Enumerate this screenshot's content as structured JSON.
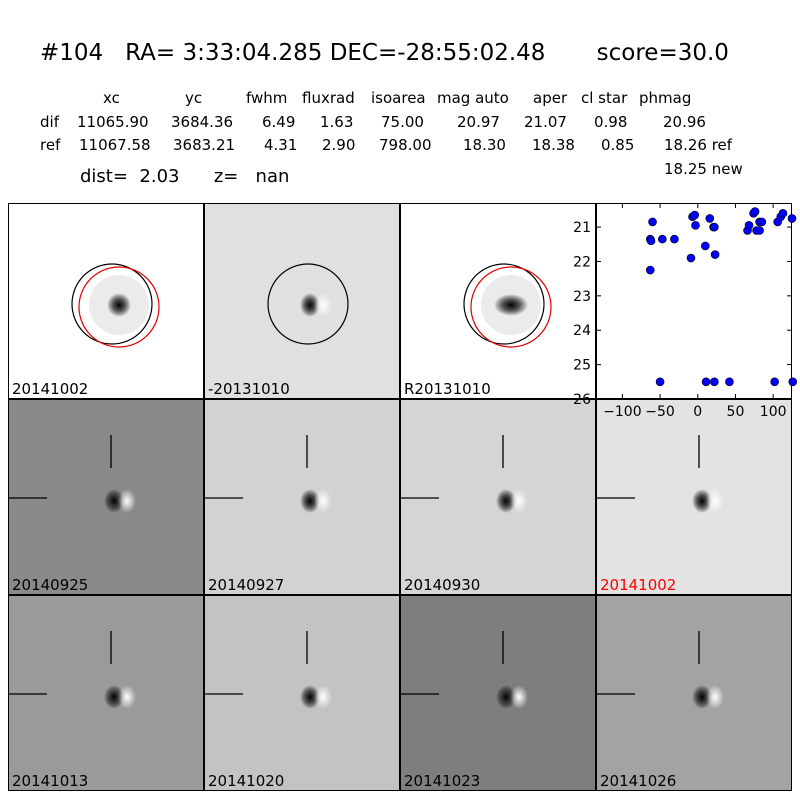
{
  "header": {
    "id": "#104",
    "ra_label": "RA=",
    "ra": "3:33:04.285",
    "dec_label": "DEC=",
    "dec": "-28:55:02.48",
    "score_label": "score=",
    "score": "30.0"
  },
  "table": {
    "columns": [
      "xc",
      "yc",
      "fwhm",
      "fluxrad",
      "isoarea",
      "mag auto",
      "aper",
      "cl star",
      "phmag"
    ],
    "rows": [
      {
        "label": "dif",
        "values": [
          "11065.90",
          "3684.36",
          "6.49",
          "1.63",
          "75.00",
          "20.97",
          "21.07",
          "0.98",
          "20.96"
        ]
      },
      {
        "label": "ref",
        "values": [
          "11067.58",
          "3683.21",
          "4.31",
          "2.90",
          "798.00",
          "18.30",
          "18.38",
          "0.85",
          "18.26 ref"
        ]
      }
    ],
    "extra": "18.25 new"
  },
  "summary": {
    "dist_label": "dist=",
    "dist": "2.03",
    "z_label": "z=",
    "z": "nan"
  },
  "panels": [
    {
      "label": "20141002",
      "bg": "#ffffff",
      "circles": "both",
      "type": "star",
      "label_color": "#000000"
    },
    {
      "label": "-20131010",
      "bg": "#e0e0e0",
      "circles": "black",
      "type": "dipole",
      "label_color": "#000000"
    },
    {
      "label": "R20131010",
      "bg": "#ffffff",
      "circles": "both",
      "type": "star-wide",
      "label_color": "#000000"
    },
    {
      "label": "20140925",
      "bg": "#8a8a8a",
      "circles": "none",
      "type": "dipole",
      "label_color": "#000000"
    },
    {
      "label": "20140927",
      "bg": "#d2d2d2",
      "circles": "none",
      "type": "dipole",
      "label_color": "#000000"
    },
    {
      "label": "20140930",
      "bg": "#d5d5d5",
      "circles": "none",
      "type": "dipole",
      "label_color": "#000000"
    },
    {
      "label": "20141002",
      "bg": "#e3e3e3",
      "circles": "none",
      "type": "dipole",
      "label_color": "#ff0000"
    },
    {
      "label": "20141013",
      "bg": "#9a9a9a",
      "circles": "none",
      "type": "dipole",
      "label_color": "#000000"
    },
    {
      "label": "20141020",
      "bg": "#c3c3c3",
      "circles": "none",
      "type": "dipole",
      "label_color": "#000000"
    },
    {
      "label": "20141023",
      "bg": "#7e7e7e",
      "circles": "none",
      "type": "dipole",
      "label_color": "#000000"
    },
    {
      "label": "20141026",
      "bg": "#a3a3a3",
      "circles": "none",
      "type": "dipole",
      "label_color": "#000000"
    }
  ],
  "chart_data": {
    "type": "scatter",
    "title": "",
    "xlabel": "",
    "ylabel": "",
    "xlim": [
      -135,
      125
    ],
    "ylim": [
      26,
      20.3
    ],
    "y_inverted": true,
    "xticks": [
      -100,
      -50,
      0,
      50,
      100
    ],
    "xtick_labels": [
      "−100",
      "−50",
      "0",
      "50",
      "100"
    ],
    "yticks": [
      21,
      22,
      23,
      24,
      25,
      26
    ],
    "ytick_labels": [
      "21",
      "22",
      "23",
      "24",
      "25",
      "26"
    ],
    "marker_color": "#0000ff",
    "series": [
      {
        "x": [
          -63,
          -63,
          -60,
          -62,
          -47,
          -31,
          -9,
          -7,
          -4,
          -3,
          10,
          16,
          21,
          23,
          22,
          66,
          68,
          74,
          76,
          82,
          78,
          82,
          85,
          106,
          110,
          113,
          125,
          -50,
          11,
          22,
          42,
          102,
          126
        ],
        "y": [
          22.25,
          21.35,
          20.85,
          21.4,
          21.35,
          21.35,
          21.9,
          20.7,
          20.65,
          20.95,
          21.55,
          20.75,
          21.0,
          21.8,
          21.0,
          21.1,
          20.95,
          20.6,
          20.55,
          20.85,
          21.1,
          21.1,
          20.85,
          20.85,
          20.7,
          20.6,
          20.75,
          25.5,
          25.5,
          25.5,
          25.5,
          25.5,
          25.5
        ]
      }
    ]
  }
}
